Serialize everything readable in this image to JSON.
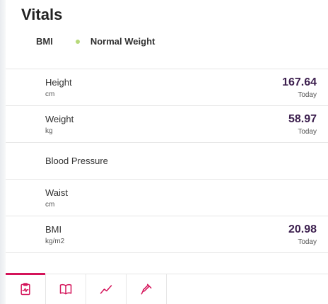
{
  "title": "Vitals",
  "bmi_status": {
    "label": "BMI",
    "status": "Normal Weight",
    "status_color": "#b7d97a"
  },
  "vitals": [
    {
      "name": "Height",
      "unit": "cm",
      "value": "167.64",
      "date": "Today"
    },
    {
      "name": "Weight",
      "unit": "kg",
      "value": "58.97",
      "date": "Today"
    },
    {
      "name": "Blood Pressure"
    },
    {
      "name": "Waist",
      "unit": "cm"
    },
    {
      "name": "BMI",
      "unit": "kg/m2",
      "value": "20.98",
      "date": "Today"
    }
  ],
  "tabs": [
    {
      "icon": "clipboard-vitals-icon",
      "active": true
    },
    {
      "icon": "book-icon",
      "active": false
    },
    {
      "icon": "trend-line-icon",
      "active": false
    },
    {
      "icon": "dropper-icon",
      "active": false
    }
  ],
  "colors": {
    "accent": "#d4145a",
    "value_text": "#3c1f4e"
  }
}
